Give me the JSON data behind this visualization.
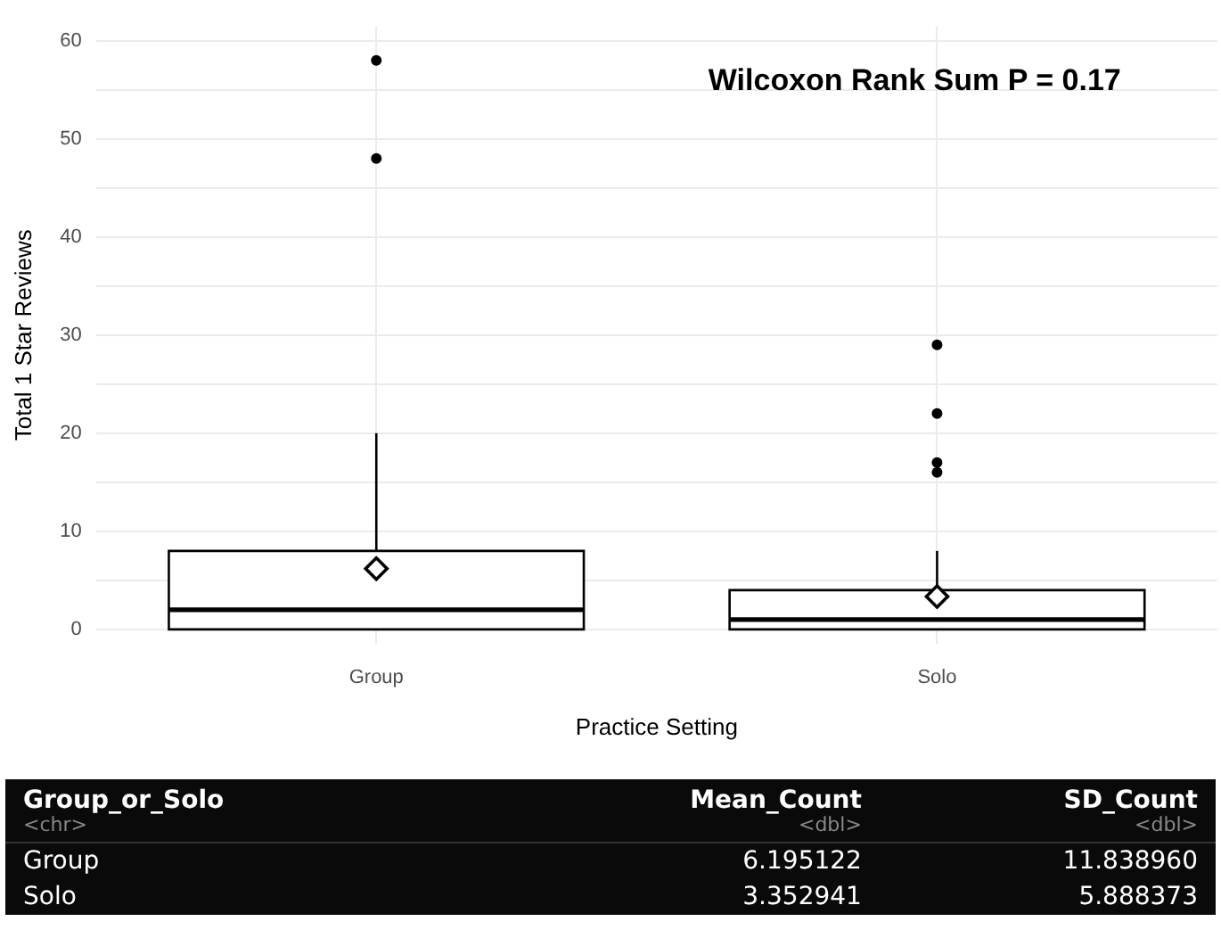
{
  "chart_data": {
    "type": "box",
    "xlabel": "Practice Setting",
    "ylabel": "Total 1 Star Reviews",
    "categories": [
      "Group",
      "Solo"
    ],
    "boxes": [
      {
        "low": 0,
        "q1": 0,
        "median": 2,
        "q3": 8,
        "high": 20,
        "mean": 6.195122,
        "outliers": [
          48,
          58
        ]
      },
      {
        "low": 0,
        "q1": 0,
        "median": 1,
        "q3": 4,
        "high": 8,
        "mean": 3.352941,
        "outliers": [
          16,
          17,
          22,
          29
        ]
      }
    ],
    "ylim": [
      -1.5,
      61.5
    ],
    "yticks": [
      0,
      {
        "value": 5,
        "label": null
      },
      10,
      {
        "value": 15,
        "label": null
      },
      20,
      {
        "value": 25,
        "label": null
      },
      30,
      {
        "value": 35,
        "label": null
      },
      40,
      {
        "value": 45,
        "label": null
      },
      50,
      {
        "value": 55,
        "label": null
      },
      60
    ],
    "grid": true,
    "annotations": [
      "Wilcoxon Rank Sum P = 0.17",
      "Group_or_Solo",
      "Mean_Count",
      "SD_Count",
      "<chr>",
      "<dbl>",
      "<dbl>",
      "Group",
      "6.195122",
      "11.838960",
      "Solo",
      "3.352941",
      "5.888373"
    ]
  }
}
